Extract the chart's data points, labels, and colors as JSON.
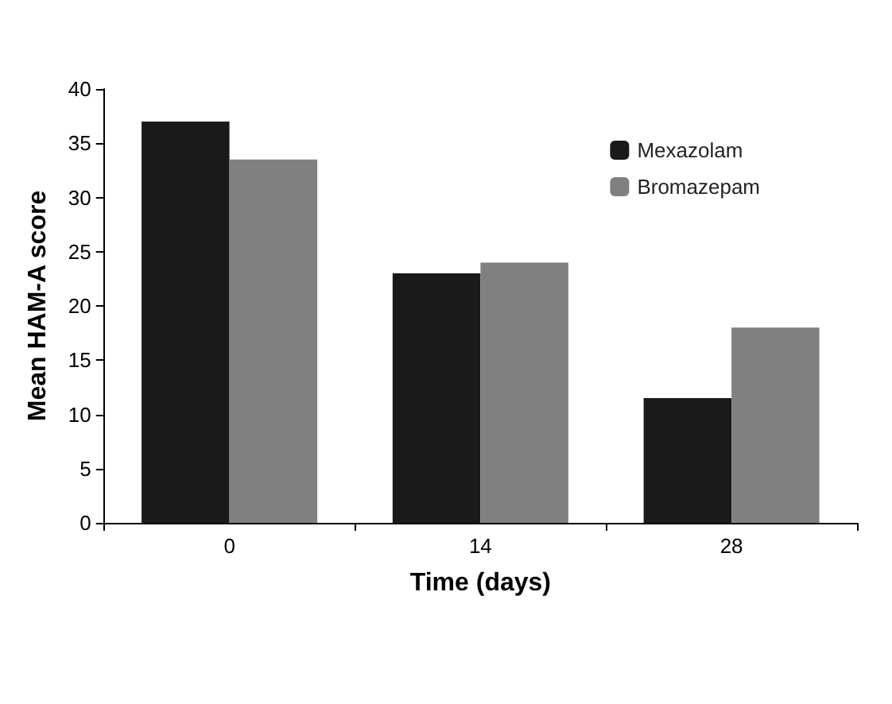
{
  "chart_data": {
    "type": "bar",
    "xlabel": "Time (days)",
    "ylabel": "Mean HAM-A score",
    "categories": [
      "0",
      "14",
      "28"
    ],
    "series": [
      {
        "name": "Mexazolam",
        "color": "#1a1a1a",
        "values": [
          37,
          23,
          11.5
        ]
      },
      {
        "name": "Bromazepam",
        "color": "#808080",
        "values": [
          33.5,
          24,
          18
        ]
      }
    ],
    "ylim": [
      0,
      40
    ],
    "yticks": [
      0,
      5,
      10,
      15,
      20,
      25,
      30,
      35,
      40
    ],
    "grid": false,
    "legend": "top right"
  }
}
